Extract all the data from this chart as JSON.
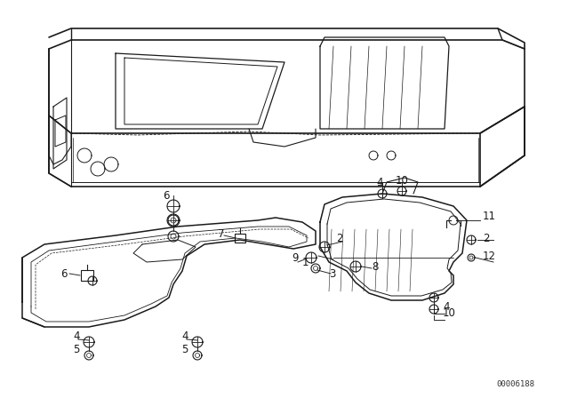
{
  "background_color": "#ffffff",
  "diagram_color": "#1a1a1a",
  "watermark_text": "00006188",
  "fig_width": 6.4,
  "fig_height": 4.48,
  "dpi": 100
}
